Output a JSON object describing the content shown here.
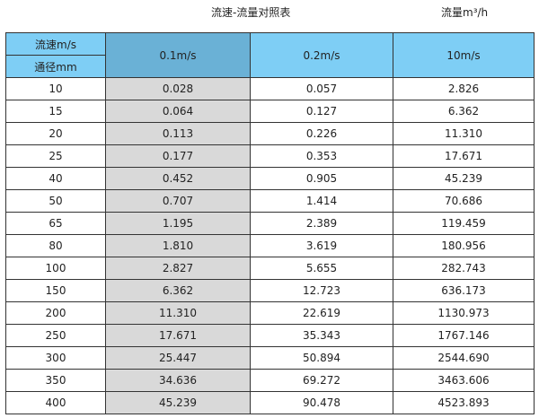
{
  "title": "流速-流量对照表",
  "unit": "流量m³/h",
  "header": {
    "speed_label": "流速m/s",
    "diameter_label": "通径mm",
    "columns": [
      "0.1m/s",
      "0.2m/s",
      "10m/s"
    ]
  },
  "colors": {
    "header": "#7ecef5",
    "selected_header": "#6ab1d6",
    "highlight_column": "#d9d9d9"
  },
  "rows": [
    [
      "10",
      "0.028",
      "0.057",
      "2.826"
    ],
    [
      "15",
      "0.064",
      "0.127",
      "6.362"
    ],
    [
      "20",
      "0.113",
      "0.226",
      "11.310"
    ],
    [
      "25",
      "0.177",
      "0.353",
      "17.671"
    ],
    [
      "40",
      "0.452",
      "0.905",
      "45.239"
    ],
    [
      "50",
      "0.707",
      "1.414",
      "70.686"
    ],
    [
      "65",
      "1.195",
      "2.389",
      "119.459"
    ],
    [
      "80",
      "1.810",
      "3.619",
      "180.956"
    ],
    [
      "100",
      "2.827",
      "5.655",
      "282.743"
    ],
    [
      "150",
      "6.362",
      "12.723",
      "636.173"
    ],
    [
      "200",
      "11.310",
      "22.619",
      "1130.973"
    ],
    [
      "250",
      "17.671",
      "35.343",
      "1767.146"
    ],
    [
      "300",
      "25.447",
      "50.894",
      "2544.690"
    ],
    [
      "350",
      "34.636",
      "69.272",
      "3463.606"
    ],
    [
      "400",
      "45.239",
      "90.478",
      "4523.893"
    ]
  ]
}
